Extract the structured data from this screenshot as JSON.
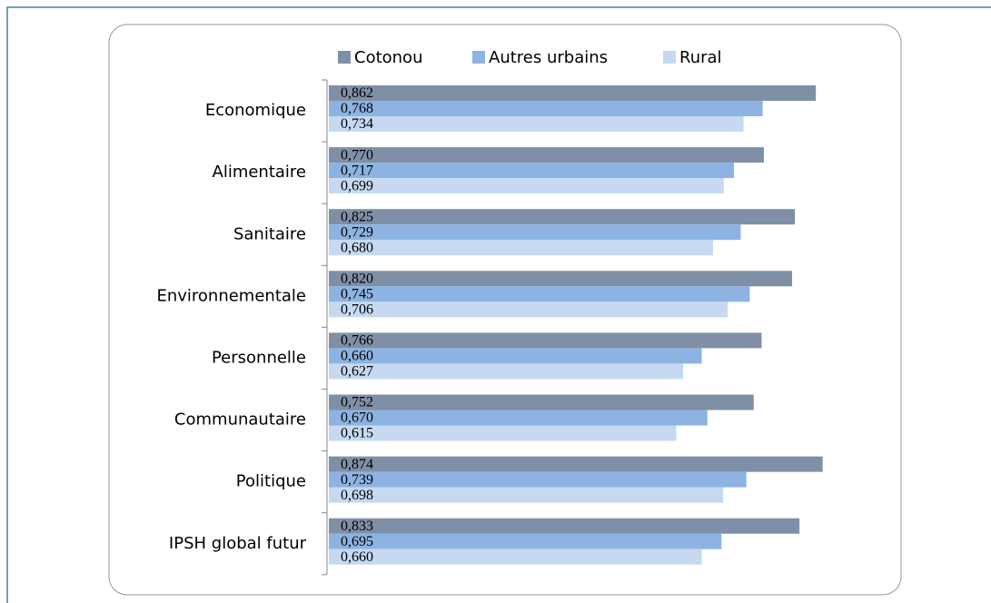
{
  "chart_data": {
    "type": "barh",
    "categories": [
      "Economique",
      "Alimentaire",
      "Sanitaire",
      "Environnementale",
      "Personnelle",
      "Communautaire",
      "Politique",
      "IPSH global futur"
    ],
    "series": [
      {
        "name": "Cotonou",
        "color": "#7f8fa6",
        "values": [
          0.862,
          0.77,
          0.825,
          0.82,
          0.766,
          0.752,
          0.874,
          0.833
        ],
        "value_labels": [
          "0,862",
          "0,770",
          "0,825",
          "0,820",
          "0,766",
          "0,752",
          "0,874",
          "0,833"
        ]
      },
      {
        "name": "Autres urbains",
        "color": "#8db3e2",
        "values": [
          0.768,
          0.717,
          0.729,
          0.745,
          0.66,
          0.67,
          0.739,
          0.695
        ],
        "value_labels": [
          "0,768",
          "0,717",
          "0,729",
          "0,745",
          "0,660",
          "0,670",
          "0,739",
          "0,695"
        ]
      },
      {
        "name": "Rural",
        "color": "#c6d9f1",
        "values": [
          0.734,
          0.699,
          0.68,
          0.706,
          0.627,
          0.615,
          0.698,
          0.66
        ],
        "value_labels": [
          "0,734",
          "0,699",
          "0,680",
          "0,706",
          "0,627",
          "0,615",
          "0,698",
          "0,660"
        ]
      }
    ],
    "legend": "top"
  }
}
